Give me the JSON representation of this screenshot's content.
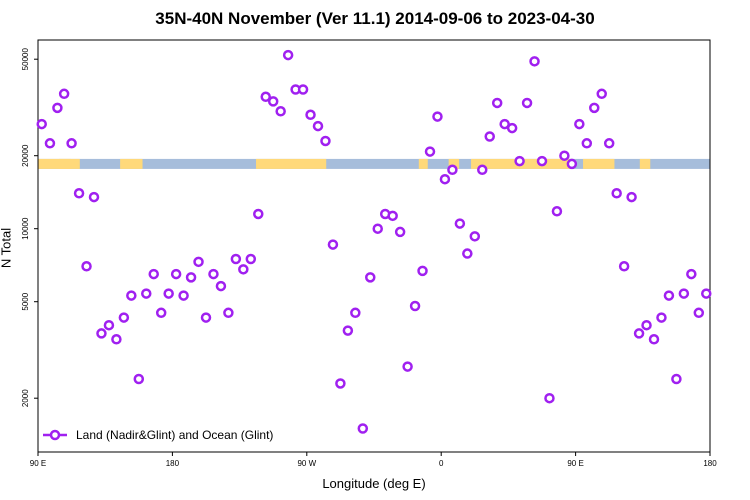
{
  "chart_data": {
    "type": "scatter",
    "title": "35N-40N November (Ver 11.1)   2014-09-06 to 2023-04-30",
    "xlabel": "Longitude (deg E)",
    "ylabel": "N Total",
    "x_ticks": [
      {
        "value": 90,
        "label": "90 E"
      },
      {
        "value": 180,
        "label": "180"
      },
      {
        "value": 270,
        "label": "90 W"
      },
      {
        "value": 360,
        "label": "0"
      },
      {
        "value": 450,
        "label": "90 E"
      },
      {
        "value": 540,
        "label": "180"
      }
    ],
    "xlim": [
      90,
      540
    ],
    "y_scale": "log",
    "y_ticks": [
      2000,
      5000,
      10000,
      20000,
      50000
    ],
    "ylim": [
      1200,
      60000
    ],
    "band_value": 18500,
    "land_color": "#FFD97A",
    "ocean_color": "#A6BDDB",
    "marker_color": "#A020F0",
    "legend": {
      "label": "Land (Nadir&Glint) and Ocean (Glint)",
      "position": "bottom-left"
    },
    "series": [
      {
        "name": "Land (Nadir&Glint) and Ocean (Glint)",
        "points": [
          [
            92.5,
            27000
          ],
          [
            98,
            22500
          ],
          [
            103,
            31500
          ],
          [
            107.5,
            36000
          ],
          [
            112.5,
            22500
          ],
          [
            117.5,
            14000
          ],
          [
            122.5,
            7000
          ],
          [
            127.5,
            13500
          ],
          [
            132.5,
            3700
          ],
          [
            137.5,
            4000
          ],
          [
            142.5,
            3500
          ],
          [
            147.5,
            4300
          ],
          [
            152.5,
            5300
          ],
          [
            157.5,
            2400
          ],
          [
            162.5,
            5400
          ],
          [
            167.5,
            6500
          ],
          [
            172.5,
            4500
          ],
          [
            177.5,
            5400
          ],
          [
            182.5,
            6500
          ],
          [
            187.5,
            5300
          ],
          [
            192.5,
            6300
          ],
          [
            197.5,
            7300
          ],
          [
            202.5,
            4300
          ],
          [
            207.5,
            6500
          ],
          [
            212.5,
            5800
          ],
          [
            217.5,
            4500
          ],
          [
            222.5,
            7500
          ],
          [
            227.5,
            6800
          ],
          [
            232.5,
            7500
          ],
          [
            237.5,
            11500
          ],
          [
            242.5,
            35000
          ],
          [
            247.5,
            33500
          ],
          [
            252.5,
            30500
          ],
          [
            257.5,
            52000
          ],
          [
            262.5,
            37500
          ],
          [
            267.5,
            37500
          ],
          [
            272.5,
            29500
          ],
          [
            277.5,
            26500
          ],
          [
            282.5,
            23000
          ],
          [
            287.5,
            8600
          ],
          [
            292.5,
            2300
          ],
          [
            297.5,
            3800
          ],
          [
            302.5,
            4500
          ],
          [
            307.5,
            1500
          ],
          [
            312.5,
            6300
          ],
          [
            317.5,
            10000
          ],
          [
            322.5,
            11500
          ],
          [
            327.5,
            11300
          ],
          [
            332.5,
            9700
          ],
          [
            337.5,
            2700
          ],
          [
            342.5,
            4800
          ],
          [
            347.5,
            6700
          ],
          [
            352.5,
            20800
          ],
          [
            357.5,
            29000
          ],
          [
            362.5,
            16000
          ],
          [
            367.5,
            17500
          ],
          [
            372.5,
            10500
          ],
          [
            377.5,
            7900
          ],
          [
            382.5,
            9300
          ],
          [
            387.5,
            17500
          ],
          [
            392.5,
            24000
          ],
          [
            397.5,
            33000
          ],
          [
            402.5,
            27000
          ],
          [
            407.5,
            26000
          ],
          [
            412.5,
            19000
          ],
          [
            417.5,
            33000
          ],
          [
            422.5,
            49000
          ],
          [
            427.5,
            19000
          ],
          [
            432.5,
            2000
          ],
          [
            437.5,
            11800
          ],
          [
            442.5,
            20000
          ],
          [
            447.5,
            18500
          ],
          [
            452.5,
            27000
          ],
          [
            457.5,
            22500
          ],
          [
            462.5,
            31500
          ],
          [
            467.5,
            36000
          ],
          [
            472.5,
            22500
          ],
          [
            477.5,
            14000
          ],
          [
            482.5,
            7000
          ],
          [
            487.5,
            13500
          ],
          [
            492.5,
            3700
          ],
          [
            497.5,
            4000
          ],
          [
            502.5,
            3500
          ],
          [
            507.5,
            4300
          ],
          [
            512.5,
            5300
          ],
          [
            517.5,
            2400
          ],
          [
            522.5,
            5400
          ],
          [
            527.5,
            6500
          ],
          [
            532.5,
            4500
          ],
          [
            537.5,
            5400
          ]
        ]
      }
    ]
  }
}
